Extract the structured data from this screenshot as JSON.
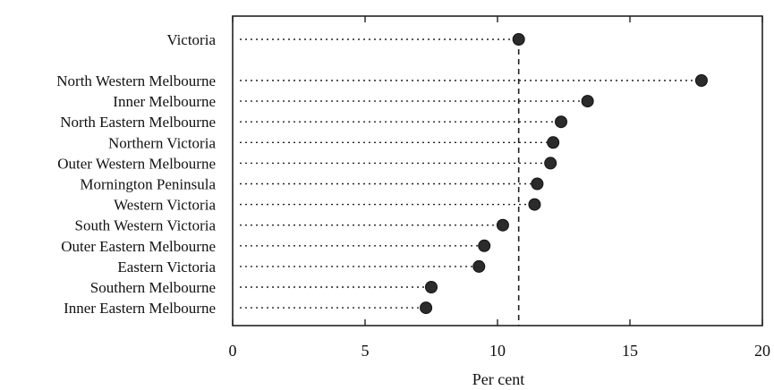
{
  "chart_data": {
    "type": "dot",
    "xlabel": "Per cent",
    "xlim": [
      0,
      20
    ],
    "xticks": [
      "0",
      "5",
      "10",
      "15",
      "20"
    ],
    "grid": false,
    "reference": {
      "category": "Victoria",
      "value": 10.8
    },
    "categories": [
      "North Western Melbourne",
      "Inner Melbourne",
      "North Eastern Melbourne",
      "Northern Victoria",
      "Outer Western Melbourne",
      "Mornington Peninsula",
      "Western Victoria",
      "South Western Victoria",
      "Outer Eastern Melbourne",
      "Eastern Victoria",
      "Southern Melbourne",
      "Inner Eastern Melbourne"
    ],
    "values": [
      17.7,
      13.4,
      12.4,
      12.1,
      12.0,
      11.5,
      11.4,
      10.2,
      9.5,
      9.3,
      7.5,
      7.3
    ]
  }
}
